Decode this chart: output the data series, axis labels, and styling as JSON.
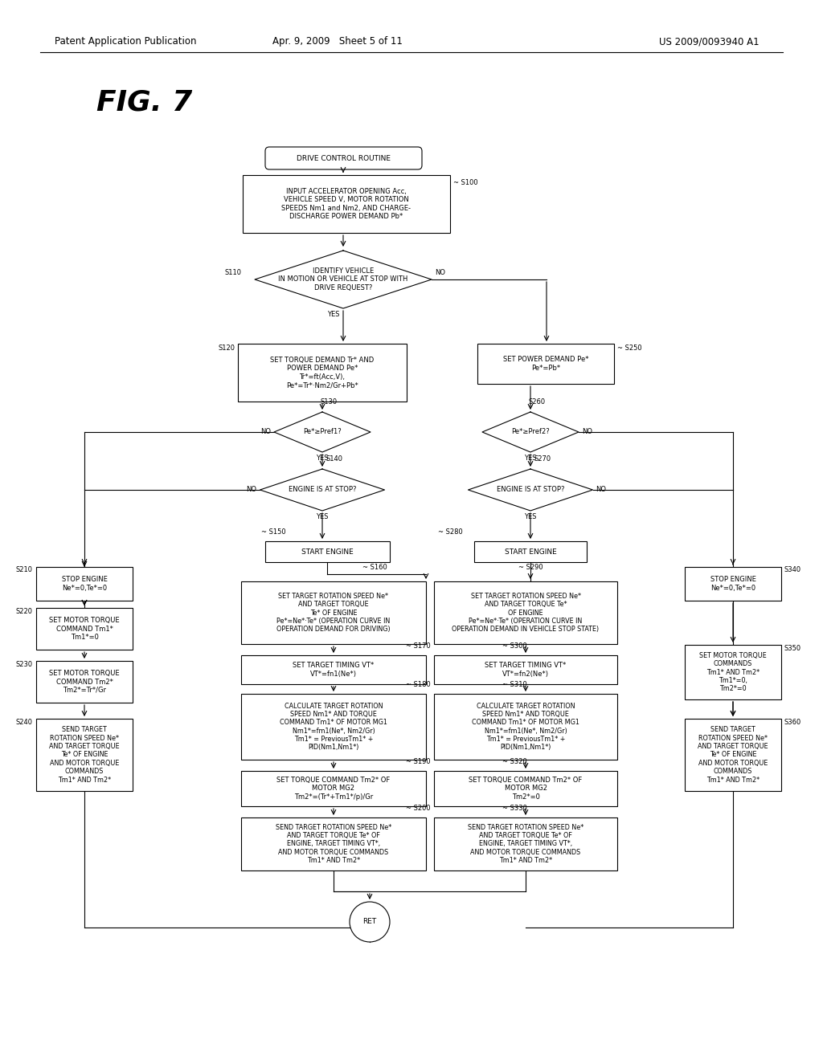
{
  "bg_color": "#ffffff",
  "header_left": "Patent Application Publication",
  "header_mid": "Apr. 9, 2009   Sheet 5 of 11",
  "header_right": "US 2009/0093940 A1",
  "fig_label": "FIG. 7",
  "boxes": {
    "START": "DRIVE CONTROL ROUTINE",
    "S100": "INPUT ACCELERATOR OPENING Acc,\nVEHICLE SPEED V, MOTOR ROTATION\nSPEEDS Nm1 and Nm2, AND CHARGE-\nDISCHARGE POWER DEMAND Pb*",
    "S110_d": "IDENTIFY VEHICLE\nIN MOTION OR VEHICLE AT STOP WITH\nDRIVE REQUEST?",
    "S120": "SET TORQUE DEMAND Tr* AND\nPOWER DEMAND Pe*\nTr*=ft(Acc,V),\nPe*=Tr*·Nm2/Gr+Pb*",
    "S250": "SET POWER DEMAND Pe*\nPe*=Pb*",
    "S130_d": "Pe*≥Pref1?",
    "S260_d": "Pe*≥Pref2?",
    "S140_d": "ENGINE IS AT STOP?",
    "S270_d": "ENGINE IS AT STOP?",
    "S150": "START ENGINE",
    "S280": "START ENGINE",
    "S210": "STOP ENGINE\nNe*=0,Te*=0",
    "S160": "SET TARGET ROTATION SPEED Ne*\nAND TARGET TORQUE\nTe* OF ENGINE\nPe*=Ne*·Te* (OPERATION CURVE IN\nOPERATION DEMAND FOR DRIVING)",
    "S290": "SET TARGET ROTATION SPEED Ne*\nAND TARGET TORQUE Te*\nOF ENGINE\nPe*=Ne*·Te* (OPERATION CURVE IN\nOPERATION DEMAND IN VEHICLE STOP STATE)",
    "S340": "STOP ENGINE\nNe*=0,Te*=0",
    "S220": "SET MOTOR TORQUE\nCOMMAND Tm1*\nTm1*=0",
    "S170": "SET TARGET TIMING VT*\nVT*=fn1(Ne*)",
    "S300": "SET TARGET TIMING VT*\nVT*=fn2(Ne*)",
    "S350": "SET MOTOR TORQUE\nCOMMANDS\nTm1* AND Tm2*\nTm1*=0,\nTm2*=0",
    "S230": "SET MOTOR TORQUE\nCOMMAND Tm2*\nTm2*=Tr*/Gr",
    "S180": "CALCULATE TARGET ROTATION\nSPEED Nm1* AND TORQUE\nCOMMAND Tm1* OF MOTOR MG1\nNm1*=fm1(Ne*, Nm2/Gr)\nTm1* = PreviousTm1* +\nPID(Nm1,Nm1*)",
    "S310": "CALCULATE TARGET ROTATION\nSPEED Nm1* AND TORQUE\nCOMMAND Tm1* OF MOTOR MG1\nNm1*=fm1(Ne*, Nm2/Gr)\nTm1* = PreviousTm1* +\nPID(Nm1,Nm1*)",
    "S240": "SEND TARGET\nROTATION SPEED Ne*\nAND TARGET TORQUE\nTe* OF ENGINE\nAND MOTOR TORQUE\nCOMMANDS\nTm1* AND Tm2*",
    "S190": "SET TORQUE COMMAND Tm2* OF\nMOTOR MG2\nTm2*=(Tr*+Tm1*/p)/Gr",
    "S320": "SET TORQUE COMMAND Tm2* OF\nMOTOR MG2\nTm2*=0",
    "S360": "SEND TARGET\nROTATION SPEED Ne*\nAND TARGET TORQUE\nTe* OF ENGINE\nAND MOTOR TORQUE\nCOMMANDS\nTm1* AND Tm2*",
    "S200": "SEND TARGET ROTATION SPEED Ne*\nAND TARGET TORQUE Te* OF\nENGINE, TARGET TIMING VT*,\nAND MOTOR TORQUE COMMANDS\nTm1* AND Tm2*",
    "S330": "SEND TARGET ROTATION SPEED Ne*\nAND TARGET TORQUE Te* OF\nENGINE, TARGET TIMING VT*,\nAND MOTOR TORQUE COMMANDS\nTm1* AND Tm2*"
  }
}
